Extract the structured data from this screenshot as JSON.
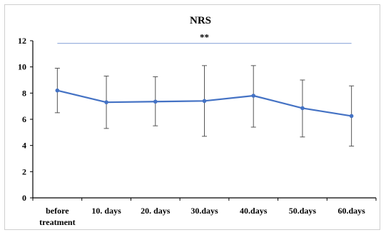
{
  "chart_data": {
    "type": "line",
    "title": "NRS",
    "xlabel": "",
    "ylabel": "",
    "categories": [
      "before treatment",
      "10. days",
      "20. days",
      "30.days",
      "40.days",
      "50.days",
      "60.days"
    ],
    "category_lines": [
      [
        "before",
        "treatment"
      ],
      [
        "10. days"
      ],
      [
        "20. days"
      ],
      [
        "30.days"
      ],
      [
        "40.days"
      ],
      [
        "50.days"
      ],
      [
        "60.days"
      ]
    ],
    "series": [
      {
        "values": [
          8.2,
          7.3,
          7.35,
          7.4,
          7.8,
          6.85,
          6.25
        ],
        "error_low": [
          6.5,
          5.3,
          5.5,
          4.7,
          5.4,
          4.65,
          3.95
        ],
        "error_high": [
          9.9,
          9.3,
          9.25,
          10.1,
          10.1,
          9.0,
          8.55
        ]
      }
    ],
    "ylim": [
      0,
      12
    ],
    "yticks": [
      0,
      2,
      4,
      6,
      8,
      10,
      12
    ],
    "ytick_labels": [
      "0",
      "2",
      "4",
      "6",
      "8",
      "10",
      "12"
    ],
    "grid": false,
    "legend": "none",
    "significance": {
      "label": "**",
      "from_category": 0,
      "to_category": 6,
      "y_value": 11.8
    },
    "colors": {
      "line": "#4472c4",
      "error_bar": "#555555",
      "axis": "#000000",
      "significance_line": "#8faadc"
    }
  }
}
